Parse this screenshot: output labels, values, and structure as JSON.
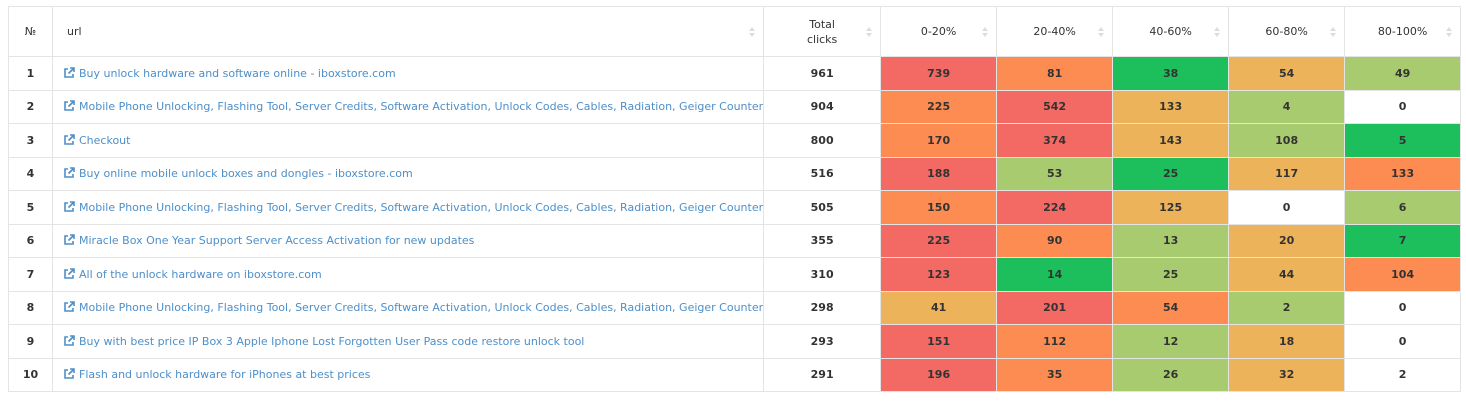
{
  "table": {
    "columns": [
      "№",
      "url",
      "Total clicks",
      "0-20%",
      "20-40%",
      "40-60%",
      "60-80%",
      "80-100%"
    ],
    "rows": [
      {
        "num": 1,
        "url": "Buy unlock hardware and software online - iboxstore.com",
        "total": 961,
        "buckets": [
          739,
          81,
          38,
          54,
          49
        ],
        "colors": [
          "#f26a63",
          "#fd8c52",
          "#1dbf5c",
          "#edb35b",
          "#a9cb6f"
        ]
      },
      {
        "num": 2,
        "url": "Mobile Phone Unlocking, Flashing Tool, Server Credits, Software Activation, Unlock Codes, Cables, Radiation, Geiger Counter",
        "total": 904,
        "buckets": [
          225,
          542,
          133,
          4,
          0
        ],
        "colors": [
          "#fd8c52",
          "#f26a63",
          "#edb35b",
          "#a9cb6f",
          "#ffffff"
        ]
      },
      {
        "num": 3,
        "url": "Checkout",
        "total": 800,
        "buckets": [
          170,
          374,
          143,
          108,
          5
        ],
        "colors": [
          "#fd8c52",
          "#f26a63",
          "#edb35b",
          "#a9cb6f",
          "#1dbf5c"
        ]
      },
      {
        "num": 4,
        "url": "Buy online mobile unlock boxes and dongles - iboxstore.com",
        "total": 516,
        "buckets": [
          188,
          53,
          25,
          117,
          133
        ],
        "colors": [
          "#f26a63",
          "#a9cb6f",
          "#1dbf5c",
          "#edb35b",
          "#fd8c52"
        ]
      },
      {
        "num": 5,
        "url": "Mobile Phone Unlocking, Flashing Tool, Server Credits, Software Activation, Unlock Codes, Cables, Radiation, Geiger Counter",
        "total": 505,
        "buckets": [
          150,
          224,
          125,
          0,
          6
        ],
        "colors": [
          "#fd8c52",
          "#f26a63",
          "#edb35b",
          "#ffffff",
          "#a9cb6f"
        ]
      },
      {
        "num": 6,
        "url": "Miracle Box One Year Support Server Access Activation for new updates",
        "total": 355,
        "buckets": [
          225,
          90,
          13,
          20,
          7
        ],
        "colors": [
          "#f26a63",
          "#fd8c52",
          "#a9cb6f",
          "#edb35b",
          "#1dbf5c"
        ]
      },
      {
        "num": 7,
        "url": "All of the unlock hardware on iboxstore.com",
        "total": 310,
        "buckets": [
          123,
          14,
          25,
          44,
          104
        ],
        "colors": [
          "#f26a63",
          "#1dbf5c",
          "#a9cb6f",
          "#edb35b",
          "#fd8c52"
        ]
      },
      {
        "num": 8,
        "url": "Mobile Phone Unlocking, Flashing Tool, Server Credits, Software Activation, Unlock Codes, Cables, Radiation, Geiger Counter",
        "total": 298,
        "buckets": [
          41,
          201,
          54,
          2,
          0
        ],
        "colors": [
          "#edb35b",
          "#f26a63",
          "#fd8c52",
          "#a9cb6f",
          "#ffffff"
        ]
      },
      {
        "num": 9,
        "url": "Buy with best price IP Box 3 Apple Iphone Lost Forgotten User Pass code restore unlock tool",
        "total": 293,
        "buckets": [
          151,
          112,
          12,
          18,
          0
        ],
        "colors": [
          "#f26a63",
          "#fd8c52",
          "#a9cb6f",
          "#edb35b",
          "#ffffff"
        ]
      },
      {
        "num": 10,
        "url": "Flash and unlock hardware for iPhones at best prices",
        "total": 291,
        "buckets": [
          196,
          35,
          26,
          32,
          2
        ],
        "colors": [
          "#f26a63",
          "#fd8c52",
          "#a9cb6f",
          "#edb35b",
          "#ffffff"
        ]
      }
    ]
  }
}
